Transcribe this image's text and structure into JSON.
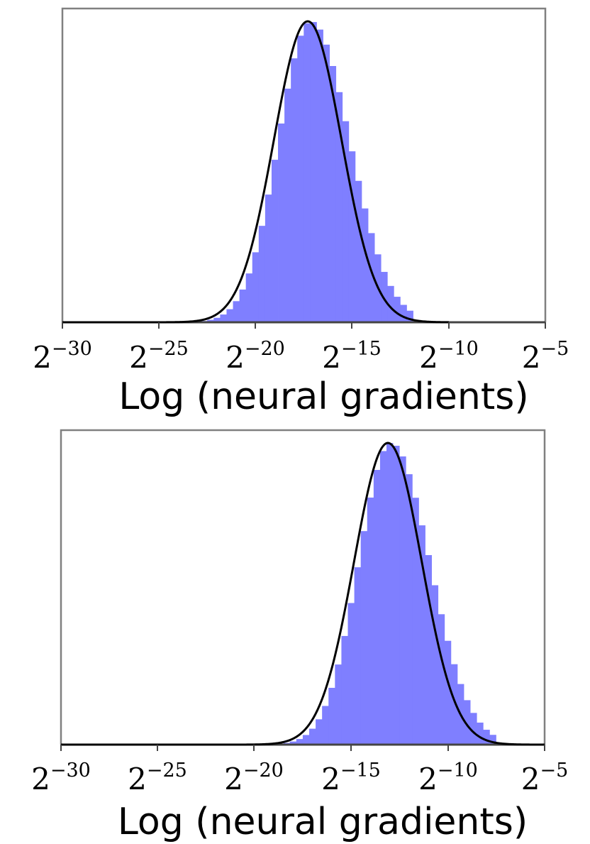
{
  "colors": {
    "histogram_fill": "#7f7fff",
    "fit_curve": "#000000",
    "axis": "#808080",
    "baseline": "#444444",
    "background": "#ffffff"
  },
  "chart_data": [
    {
      "type": "histogram",
      "title": "",
      "xlabel": "Log (neural gradients)",
      "ylabel": "",
      "x_scale": "log2",
      "xlim_exponent": [
        -30,
        -5
      ],
      "tick_base": "2",
      "tick_exponents": [
        "−30",
        "−25",
        "−20",
        "−15",
        "−10",
        "−5"
      ],
      "tick_values": [
        -30,
        -25,
        -20,
        -15,
        -10,
        -5
      ],
      "yticks_shown": false,
      "grid": false,
      "histogram": {
        "bin_width_log2": 0.333,
        "approx_mean_log2": -17.3,
        "approx_std_log2": 1.75,
        "skew": 0.15,
        "range_log2": [
          -24.5,
          -12.0
        ],
        "peak_relative_height": 1.0
      },
      "fit_curve": {
        "type": "lognormal (normal in log2)",
        "mean_log2": -17.3,
        "std_log2": 1.75,
        "range_log2": [
          -30,
          -10
        ]
      }
    },
    {
      "type": "histogram",
      "title": "",
      "xlabel": "Log (neural gradients)",
      "ylabel": "",
      "x_scale": "log2",
      "xlim_exponent": [
        -30,
        -5
      ],
      "tick_base": "2",
      "tick_exponents": [
        "−30",
        "−25",
        "−20",
        "−15",
        "−10",
        "−5"
      ],
      "tick_values": [
        -30,
        -25,
        -20,
        -15,
        -10,
        -5
      ],
      "yticks_shown": false,
      "grid": false,
      "histogram": {
        "bin_width_log2": 0.333,
        "approx_mean_log2": -13.1,
        "approx_std_log2": 1.75,
        "skew": 0.15,
        "range_log2": [
          -20.5,
          -7.8
        ],
        "peak_relative_height": 1.0
      },
      "fit_curve": {
        "type": "lognormal (normal in log2)",
        "mean_log2": -13.1,
        "std_log2": 1.75,
        "range_log2": [
          -30,
          -5
        ]
      }
    }
  ]
}
